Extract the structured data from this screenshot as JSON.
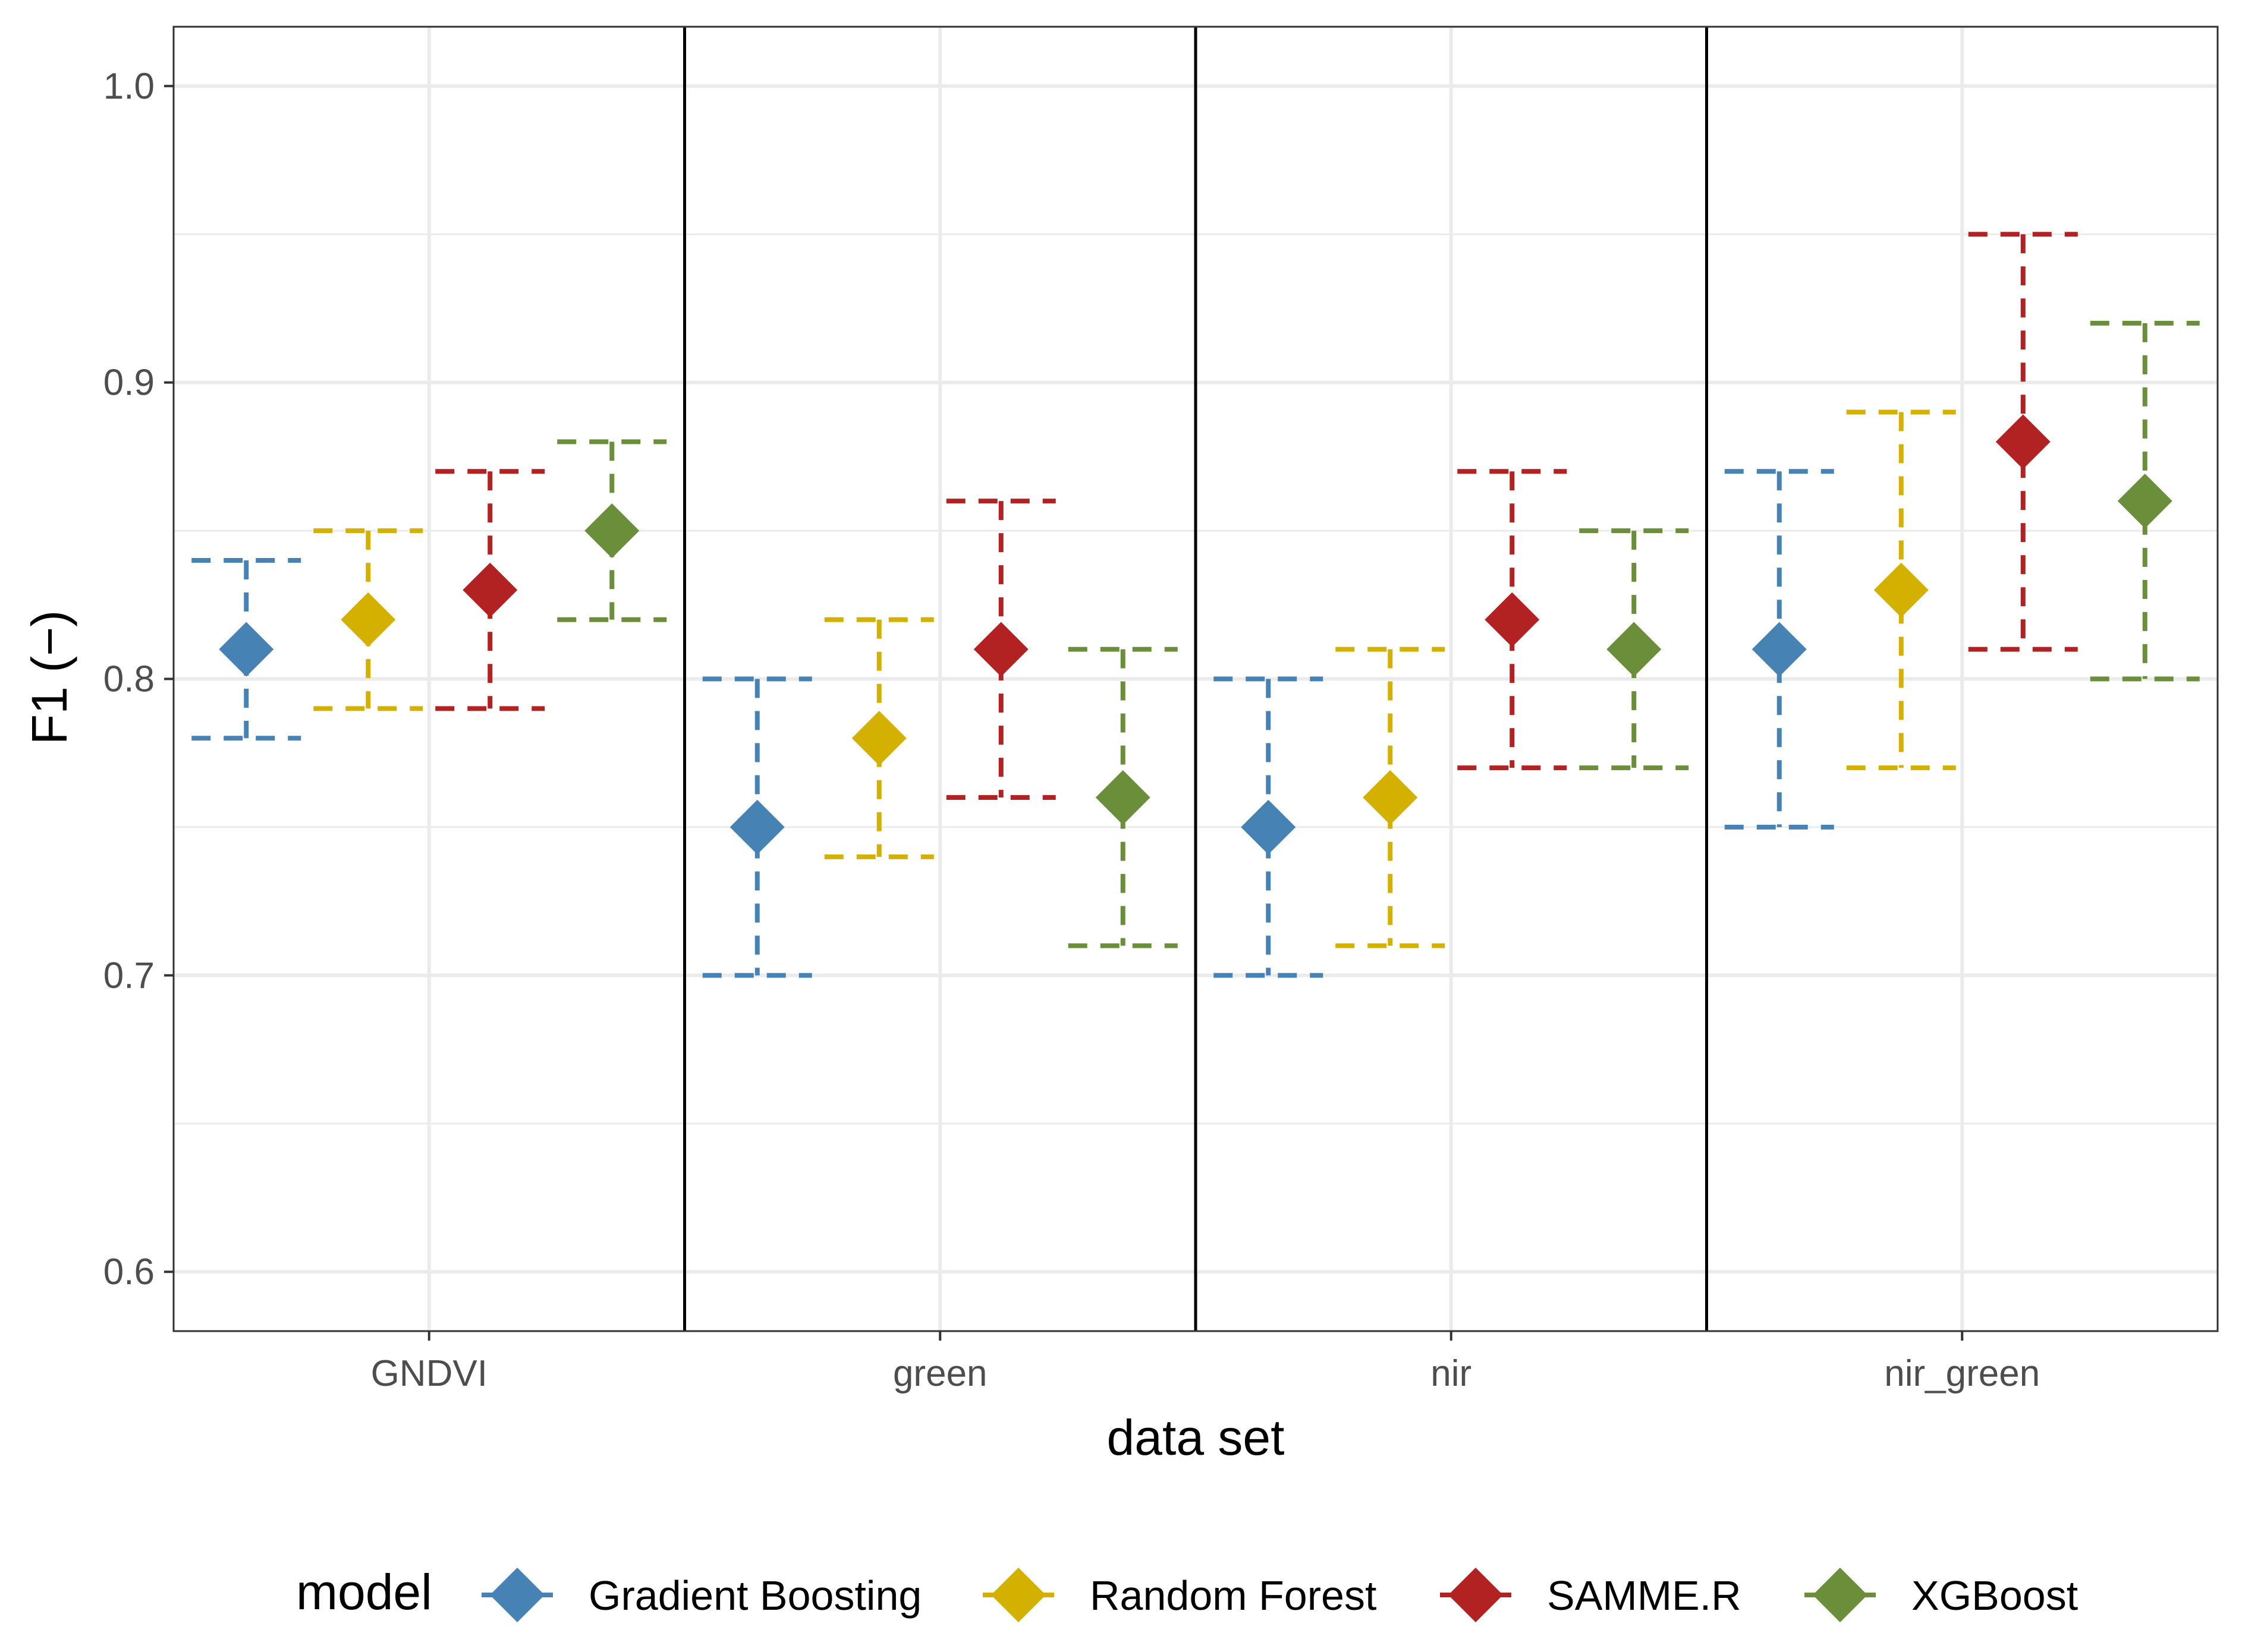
{
  "chart_data": {
    "type": "scatter",
    "title": "",
    "xlabel": "data set",
    "ylabel": "F1 (−)",
    "ylim": [
      0.58,
      1.02
    ],
    "yticks": [
      "0.6",
      "0.7",
      "0.8",
      "0.9",
      "1.0"
    ],
    "grid": true,
    "legend_position": "bottom",
    "legend_title": "model",
    "categories": [
      "GNDVI",
      "green",
      "nir",
      "nir_green"
    ],
    "series": [
      {
        "name": "Gradient Boosting",
        "color": "#4682B4",
        "values": [
          0.81,
          0.75,
          0.75,
          0.81
        ],
        "lower": [
          0.78,
          0.7,
          0.7,
          0.75
        ],
        "upper": [
          0.84,
          0.8,
          0.8,
          0.87
        ]
      },
      {
        "name": "Random Forest",
        "color": "#D4B000",
        "values": [
          0.82,
          0.78,
          0.76,
          0.83
        ],
        "lower": [
          0.79,
          0.74,
          0.71,
          0.77
        ],
        "upper": [
          0.85,
          0.82,
          0.81,
          0.89
        ]
      },
      {
        "name": "SAMME.R",
        "color": "#B22222",
        "values": [
          0.83,
          0.81,
          0.82,
          0.88
        ],
        "lower": [
          0.79,
          0.76,
          0.77,
          0.81
        ],
        "upper": [
          0.87,
          0.86,
          0.87,
          0.95
        ]
      },
      {
        "name": "XGBoost",
        "color": "#6B8E3A",
        "values": [
          0.85,
          0.76,
          0.81,
          0.86
        ],
        "lower": [
          0.82,
          0.71,
          0.77,
          0.8
        ],
        "upper": [
          0.88,
          0.81,
          0.85,
          0.92
        ]
      }
    ]
  }
}
